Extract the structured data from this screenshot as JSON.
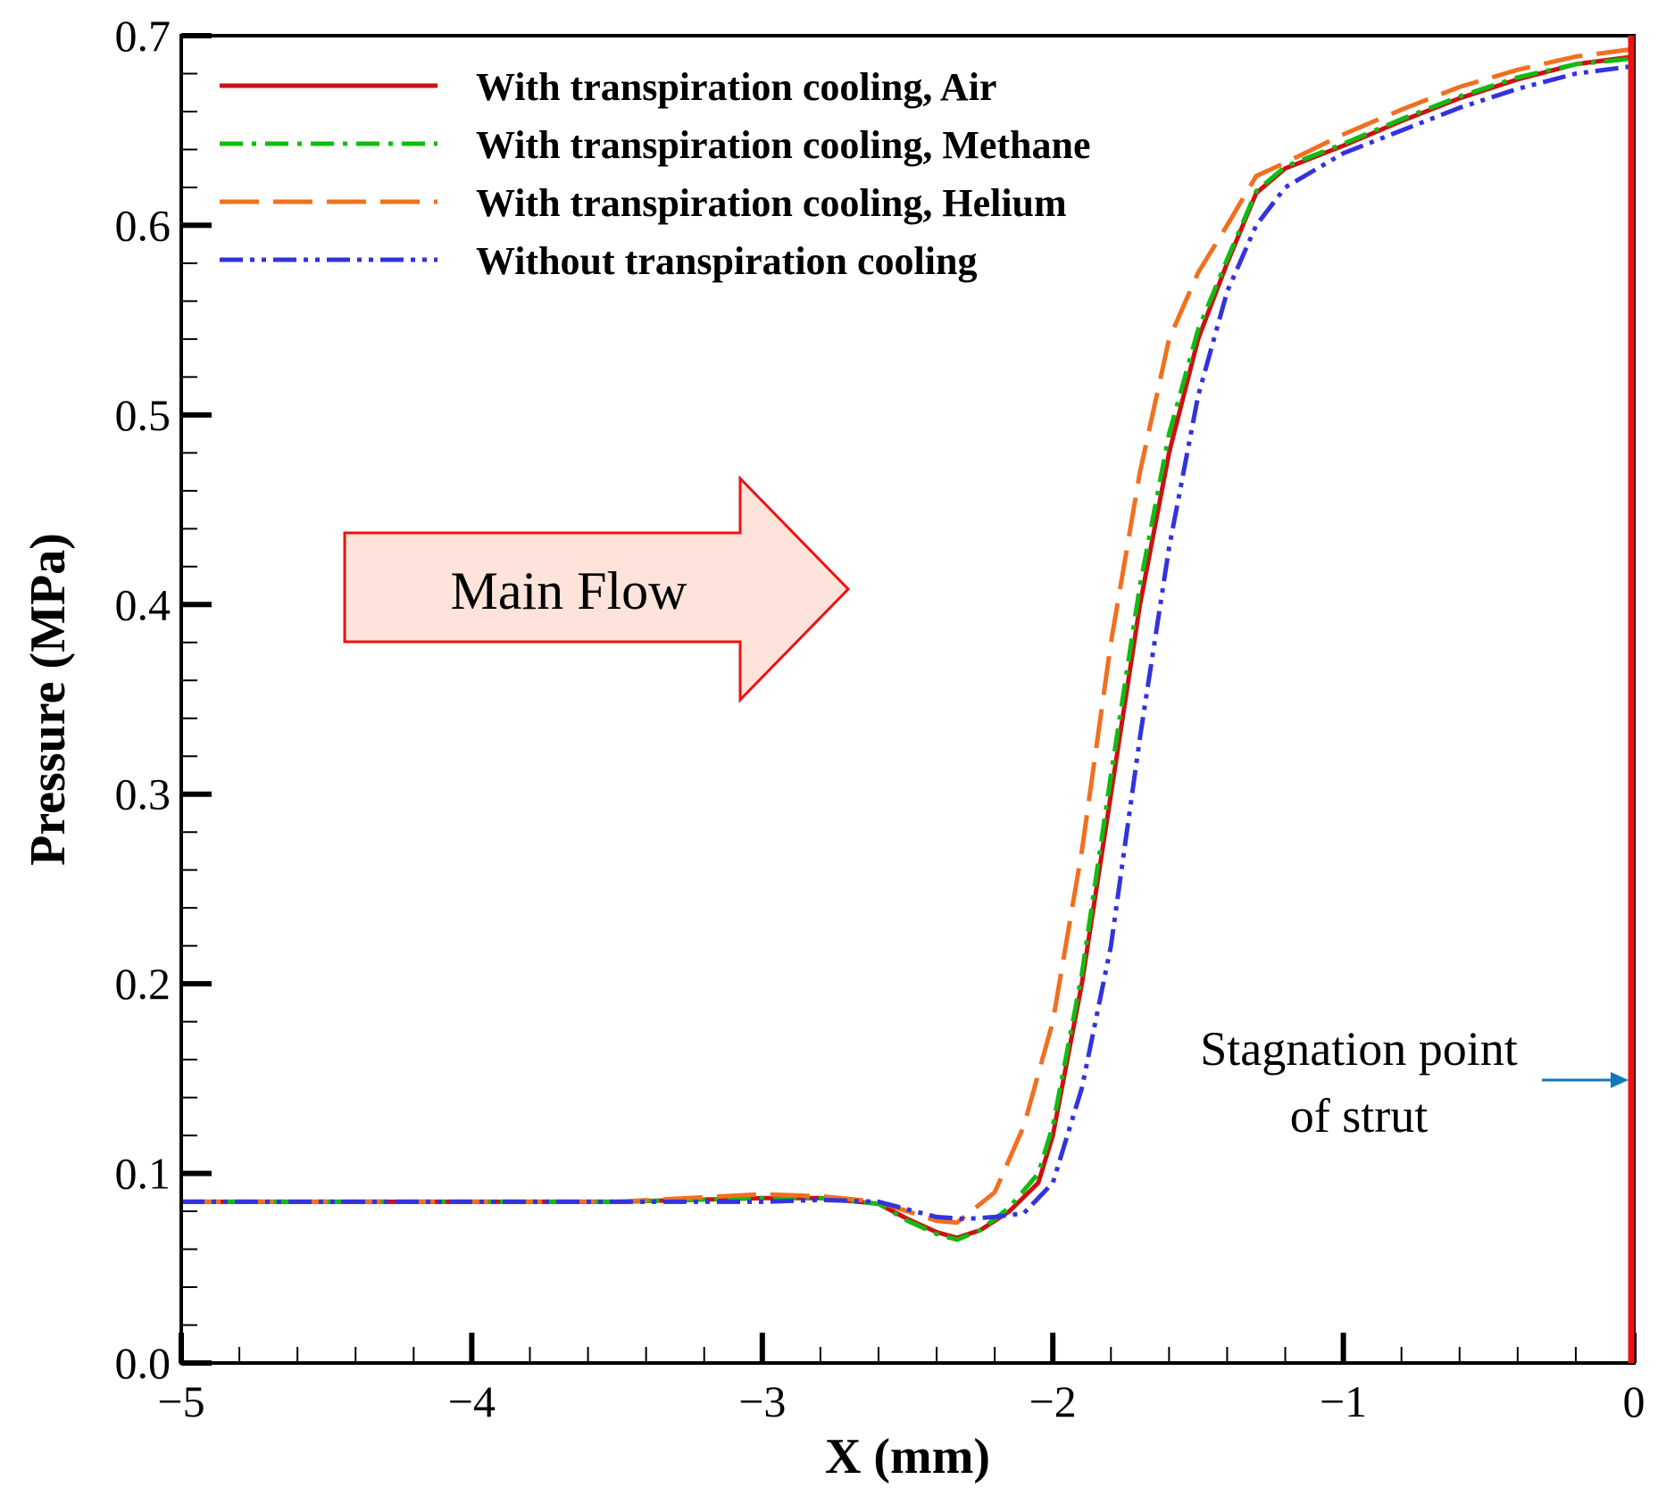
{
  "chart_data": {
    "type": "line",
    "title": "",
    "xlabel": "X (mm)",
    "ylabel": "Pressure (MPa)",
    "xlim": [
      -5,
      0
    ],
    "ylim": [
      0,
      0.7
    ],
    "x_ticks": [
      -5,
      -4,
      -3,
      -2,
      -1,
      0
    ],
    "x_tick_labels": [
      "−5",
      "−4",
      "−3",
      "−2",
      "−1",
      "0"
    ],
    "y_ticks": [
      0,
      0.1,
      0.2,
      0.3,
      0.4,
      0.5,
      0.6,
      0.7
    ],
    "y_tick_labels": [
      "0.0",
      "0.1",
      "0.2",
      "0.3",
      "0.4",
      "0.5",
      "0.6",
      "0.7"
    ],
    "legend_position": "top-left",
    "series": [
      {
        "name": "With transpiration cooling, Air",
        "color": "#cc1111",
        "dash": "solid",
        "points": [
          [
            -5.0,
            0.085
          ],
          [
            -4.0,
            0.085
          ],
          [
            -3.5,
            0.085
          ],
          [
            -3.0,
            0.087
          ],
          [
            -2.8,
            0.087
          ],
          [
            -2.6,
            0.084
          ],
          [
            -2.5,
            0.076
          ],
          [
            -2.4,
            0.069
          ],
          [
            -2.33,
            0.066
          ],
          [
            -2.25,
            0.07
          ],
          [
            -2.15,
            0.08
          ],
          [
            -2.05,
            0.095
          ],
          [
            -2.0,
            0.12
          ],
          [
            -1.9,
            0.2
          ],
          [
            -1.8,
            0.3
          ],
          [
            -1.7,
            0.4
          ],
          [
            -1.6,
            0.48
          ],
          [
            -1.5,
            0.54
          ],
          [
            -1.4,
            0.58
          ],
          [
            -1.3,
            0.617
          ],
          [
            -1.2,
            0.63
          ],
          [
            -1.0,
            0.642
          ],
          [
            -0.8,
            0.655
          ],
          [
            -0.6,
            0.667
          ],
          [
            -0.4,
            0.677
          ],
          [
            -0.2,
            0.685
          ],
          [
            0.0,
            0.689
          ]
        ]
      },
      {
        "name": "With transpiration cooling, Methane",
        "color": "#11bb11",
        "dash": "dashdot",
        "points": [
          [
            -5.0,
            0.085
          ],
          [
            -4.0,
            0.085
          ],
          [
            -3.5,
            0.085
          ],
          [
            -3.0,
            0.087
          ],
          [
            -2.8,
            0.087
          ],
          [
            -2.6,
            0.084
          ],
          [
            -2.5,
            0.075
          ],
          [
            -2.4,
            0.068
          ],
          [
            -2.33,
            0.065
          ],
          [
            -2.25,
            0.07
          ],
          [
            -2.15,
            0.082
          ],
          [
            -2.05,
            0.1
          ],
          [
            -2.0,
            0.125
          ],
          [
            -1.9,
            0.205
          ],
          [
            -1.8,
            0.31
          ],
          [
            -1.7,
            0.41
          ],
          [
            -1.6,
            0.49
          ],
          [
            -1.5,
            0.545
          ],
          [
            -1.4,
            0.582
          ],
          [
            -1.3,
            0.618
          ],
          [
            -1.2,
            0.631
          ],
          [
            -1.0,
            0.643
          ],
          [
            -0.8,
            0.656
          ],
          [
            -0.6,
            0.668
          ],
          [
            -0.4,
            0.678
          ],
          [
            -0.2,
            0.685
          ],
          [
            0.0,
            0.688
          ]
        ]
      },
      {
        "name": "With transpiration cooling, Helium",
        "color": "#f07020",
        "dash": "dashed",
        "points": [
          [
            -5.0,
            0.085
          ],
          [
            -4.0,
            0.085
          ],
          [
            -3.5,
            0.085
          ],
          [
            -3.0,
            0.089
          ],
          [
            -2.8,
            0.088
          ],
          [
            -2.6,
            0.085
          ],
          [
            -2.5,
            0.08
          ],
          [
            -2.4,
            0.075
          ],
          [
            -2.33,
            0.074
          ],
          [
            -2.2,
            0.09
          ],
          [
            -2.1,
            0.125
          ],
          [
            -2.0,
            0.18
          ],
          [
            -1.9,
            0.27
          ],
          [
            -1.8,
            0.38
          ],
          [
            -1.7,
            0.47
          ],
          [
            -1.6,
            0.54
          ],
          [
            -1.5,
            0.575
          ],
          [
            -1.4,
            0.6
          ],
          [
            -1.3,
            0.626
          ],
          [
            -1.2,
            0.633
          ],
          [
            -1.0,
            0.648
          ],
          [
            -0.8,
            0.661
          ],
          [
            -0.6,
            0.673
          ],
          [
            -0.4,
            0.682
          ],
          [
            -0.2,
            0.689
          ],
          [
            0.0,
            0.693
          ]
        ]
      },
      {
        "name": "Without transpiration cooling",
        "color": "#3333dd",
        "dash": "dashdotdot",
        "points": [
          [
            -5.0,
            0.085
          ],
          [
            -4.0,
            0.085
          ],
          [
            -3.5,
            0.085
          ],
          [
            -3.0,
            0.085
          ],
          [
            -2.8,
            0.086
          ],
          [
            -2.6,
            0.085
          ],
          [
            -2.5,
            0.081
          ],
          [
            -2.4,
            0.077
          ],
          [
            -2.3,
            0.076
          ],
          [
            -2.2,
            0.077
          ],
          [
            -2.1,
            0.079
          ],
          [
            -2.0,
            0.095
          ],
          [
            -1.9,
            0.145
          ],
          [
            -1.8,
            0.22
          ],
          [
            -1.7,
            0.33
          ],
          [
            -1.6,
            0.43
          ],
          [
            -1.5,
            0.51
          ],
          [
            -1.4,
            0.565
          ],
          [
            -1.3,
            0.6
          ],
          [
            -1.2,
            0.62
          ],
          [
            -1.0,
            0.638
          ],
          [
            -0.8,
            0.65
          ],
          [
            -0.6,
            0.662
          ],
          [
            -0.4,
            0.672
          ],
          [
            -0.2,
            0.68
          ],
          [
            0.0,
            0.684
          ]
        ]
      }
    ],
    "wall_line": {
      "x": 0,
      "color": "#ee1111"
    },
    "annotations": {
      "main_flow": "Main Flow",
      "stagnation_line1": "Stagnation point",
      "stagnation_line2": "of strut"
    },
    "arrow_color": "#1177bb",
    "flow_arrow_fill": "#fde3da",
    "flow_arrow_stroke": "#ee1111"
  }
}
